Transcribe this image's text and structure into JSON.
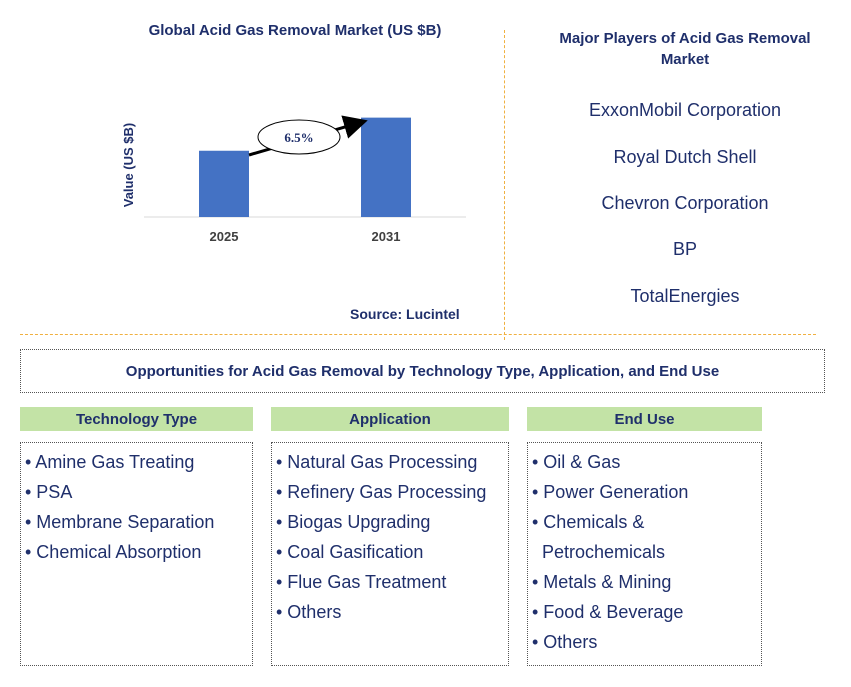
{
  "chart_data": {
    "type": "bar",
    "title": "Global Acid Gas Removal Market (US $B)",
    "ylabel": "Value (US $B)",
    "xlabel": "",
    "categories": [
      "2025",
      "2031"
    ],
    "values": [
      1.0,
      1.5
    ],
    "ylim": [
      0,
      1.6
    ],
    "annotation": "6.5%",
    "colors": {
      "bar": "#4472c4"
    },
    "grid": false
  },
  "source": "Source: Lucintel",
  "players": {
    "title": "Major Players of Acid Gas Removal Market",
    "items": [
      "ExxonMobil Corporation",
      "Royal Dutch Shell",
      "Chevron Corporation",
      "BP",
      "TotalEnergies"
    ]
  },
  "opportunities": {
    "title": "Opportunities for Acid Gas Removal by Technology Type, Application, and End Use",
    "header_color": "#c3e3a6",
    "columns": [
      {
        "header": "Technology Type",
        "items": [
          "• Amine Gas Treating",
          "• PSA",
          "• Membrane Separation",
          "• Chemical Absorption"
        ]
      },
      {
        "header": "Application",
        "items": [
          "• Natural Gas Processing",
          "• Refinery Gas Processing",
          "• Biogas Upgrading",
          "• Coal Gasification",
          "• Flue Gas Treatment",
          "• Others"
        ]
      },
      {
        "header": "End Use",
        "items": [
          "• Oil & Gas",
          "• Power Generation",
          "• Chemicals & Petrochemicals",
          "• Metals & Mining",
          "• Food & Beverage",
          "• Others"
        ]
      }
    ]
  }
}
